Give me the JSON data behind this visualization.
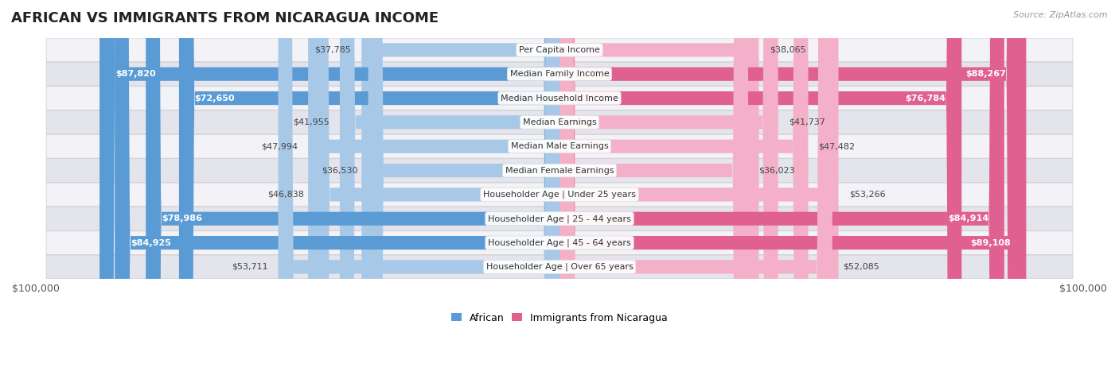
{
  "title": "AFRICAN VS IMMIGRANTS FROM NICARAGUA INCOME",
  "source": "Source: ZipAtlas.com",
  "categories": [
    "Per Capita Income",
    "Median Family Income",
    "Median Household Income",
    "Median Earnings",
    "Median Male Earnings",
    "Median Female Earnings",
    "Householder Age | Under 25 years",
    "Householder Age | 25 - 44 years",
    "Householder Age | 45 - 64 years",
    "Householder Age | Over 65 years"
  ],
  "african_values": [
    37785,
    87820,
    72650,
    41955,
    47994,
    36530,
    46838,
    78986,
    84925,
    53711
  ],
  "nicaragua_values": [
    38065,
    88267,
    76784,
    41737,
    47482,
    36023,
    53266,
    84914,
    89108,
    52085
  ],
  "african_labels": [
    "$37,785",
    "$87,820",
    "$72,650",
    "$41,955",
    "$47,994",
    "$36,530",
    "$46,838",
    "$78,986",
    "$84,925",
    "$53,711"
  ],
  "nicaragua_labels": [
    "$38,065",
    "$88,267",
    "$76,784",
    "$41,737",
    "$47,482",
    "$36,023",
    "$53,266",
    "$84,914",
    "$89,108",
    "$52,085"
  ],
  "max_value": 100000,
  "african_color_light": "#a8c8e8",
  "african_color_dark": "#5b9bd5",
  "nicaragua_color_light": "#f4b0c8",
  "nicaragua_color_dark": "#e06090",
  "row_bg_light": "#f2f2f7",
  "row_bg_dark": "#e4e4ec",
  "label_dark_threshold": 60000,
  "legend_african": "African",
  "legend_nicaragua": "Immigrants from Nicaragua",
  "x_tick_label_left": "$100,000",
  "x_tick_label_right": "$100,000",
  "bar_height": 0.55,
  "figure_bg": "#ffffff",
  "title_fontsize": 13,
  "label_fontsize": 8,
  "cat_fontsize": 8
}
